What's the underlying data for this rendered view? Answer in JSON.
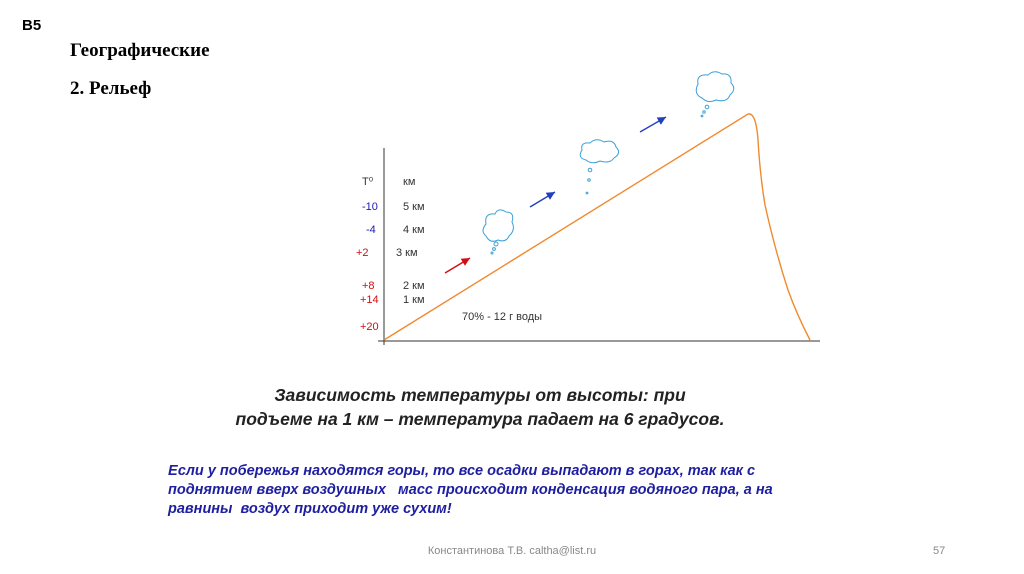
{
  "slide": {
    "tag": "B5",
    "title": "Географические",
    "subtitle": "2. Рельеф"
  },
  "diagram": {
    "axis_header": {
      "temp": "T⁰",
      "height": "км"
    },
    "rows": [
      {
        "temp": "-10",
        "height": "5 км",
        "temp_color": "#1a1ab0"
      },
      {
        "temp": "-4",
        "height": "4 км",
        "temp_color": "#1a1ab0"
      },
      {
        "temp": "+2",
        "height": "3 км",
        "temp_color": "#d01010"
      },
      {
        "temp": "+8",
        "height": "2 км",
        "temp_color": "#d01010"
      },
      {
        "temp": "+14",
        "height": "1 км",
        "temp_color": "#d01010"
      },
      {
        "temp": "+20",
        "height": "",
        "temp_color": "#d01010"
      }
    ],
    "humidity_label": "70% - 12 г воды",
    "colors": {
      "slope": "#f08a30",
      "cloud": "#3aa0d8",
      "arrow_warm": "#d01010",
      "arrow_cold": "#2040c0"
    }
  },
  "caption": {
    "line1": "Зависимость температуры от высоты: при",
    "line2": "подъеме на 1 км – температура падает на 6 градусов."
  },
  "note": {
    "line1": "Если у побережья находятся горы, то все осадки выпадают в горах, так как с",
    "line2": "поднятием вверх воздушных   масс происходит конденсация водяного пара, а на",
    "line3": "равнины  воздух приходит уже сухим!"
  },
  "footer": {
    "author": "Константинова Т.В. caltha@list.ru",
    "page": "57"
  }
}
